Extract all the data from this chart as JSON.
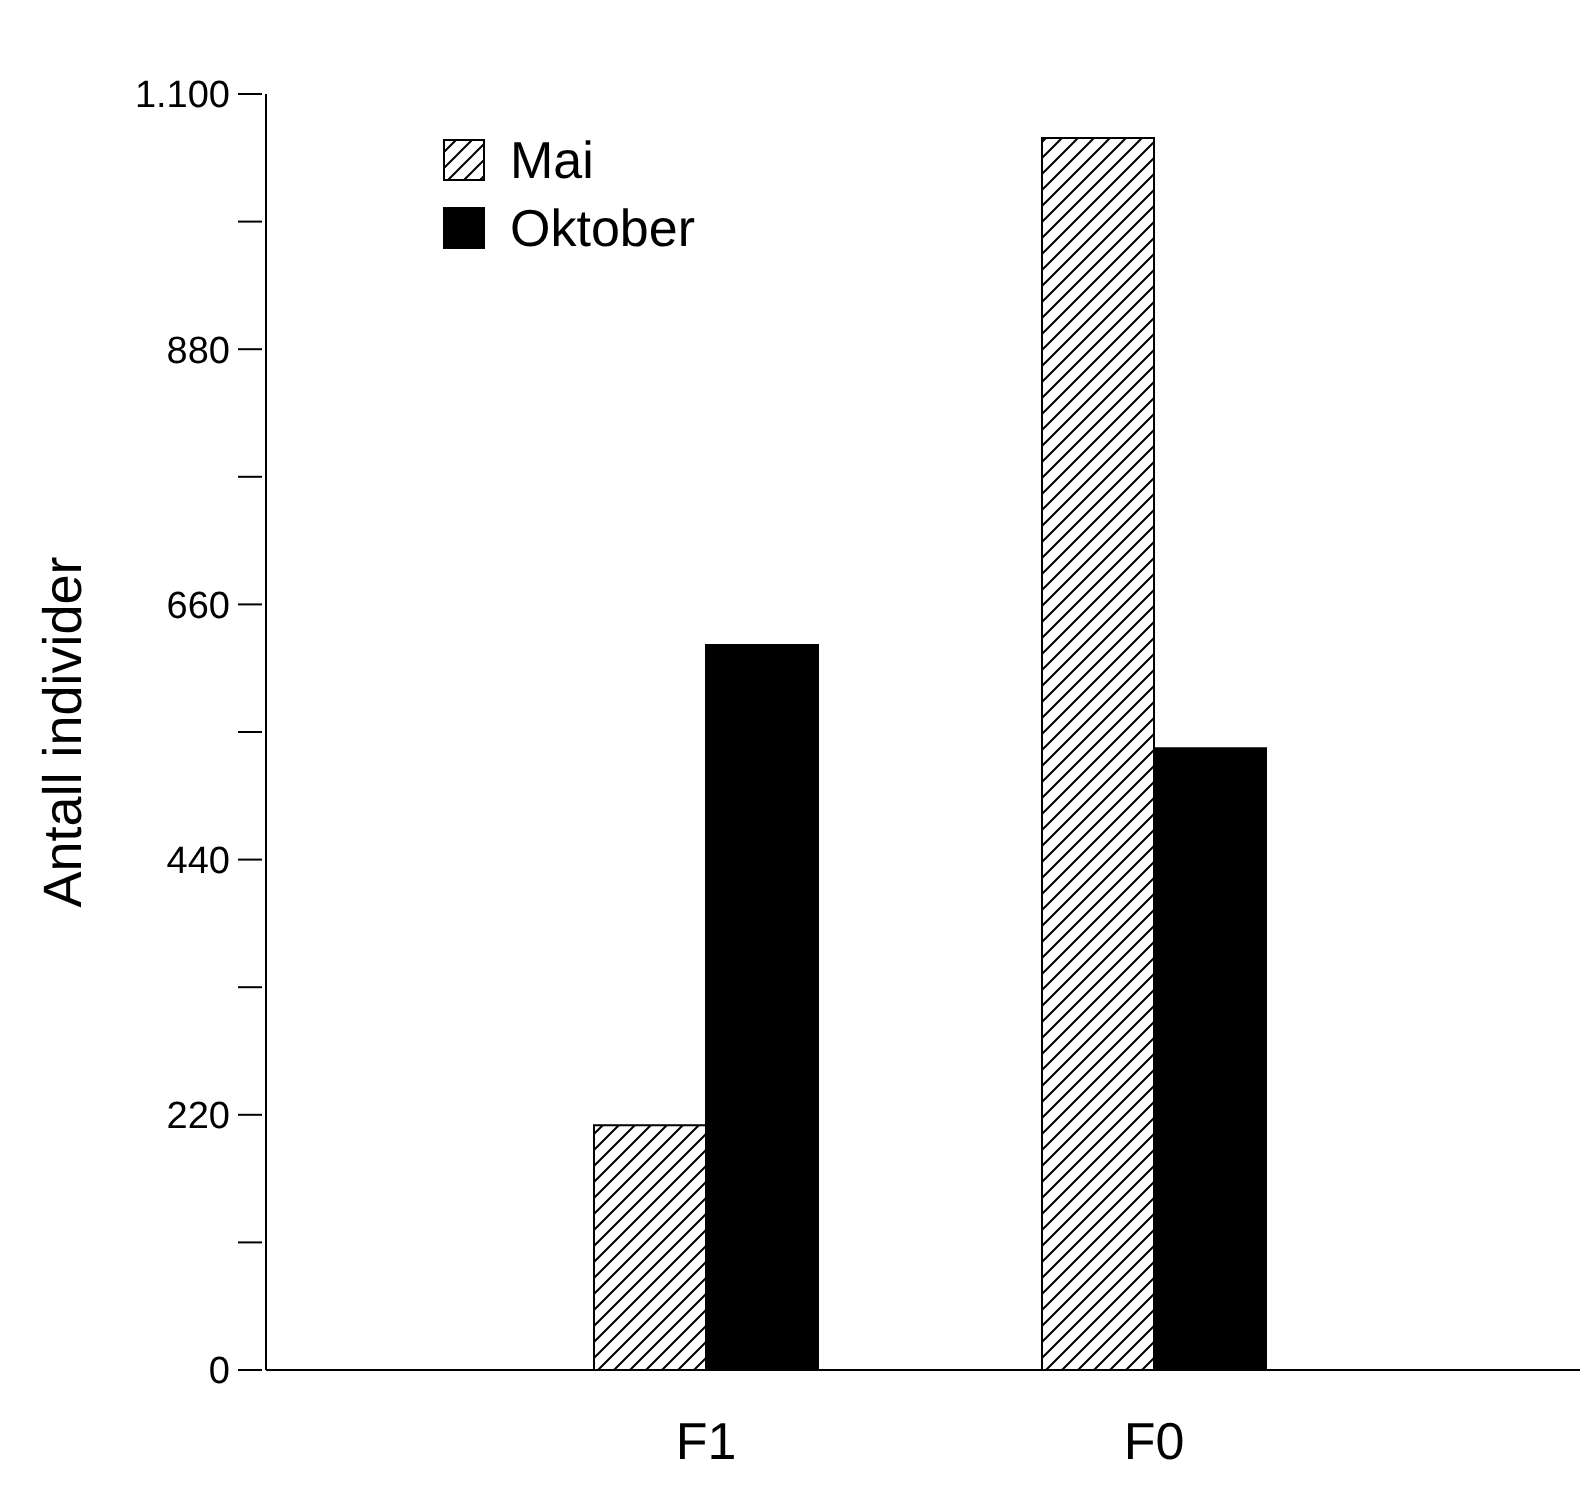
{
  "chart_data": {
    "type": "bar",
    "ylabel": "Antall individer",
    "categories": [
      "F1",
      "F0"
    ],
    "series": [
      {
        "name": "Mai",
        "color": "#000000",
        "values": [
          211,
          1062
        ]
      },
      {
        "name": "Oktober",
        "color": "#000000",
        "values": [
          625,
          536
        ]
      }
    ],
    "ylim": [
      0,
      1100
    ],
    "yticks": [
      0,
      {
        "value": 110,
        "label": null
      },
      220,
      {
        "value": 330,
        "label": null
      },
      440,
      {
        "value": 550,
        "label": null
      },
      660,
      {
        "value": 770,
        "label": null
      },
      880,
      {
        "value": 990,
        "label": null
      },
      {
        "value": 1100,
        "label": "1.100"
      }
    ],
    "grid": false,
    "legend": "top left"
  }
}
